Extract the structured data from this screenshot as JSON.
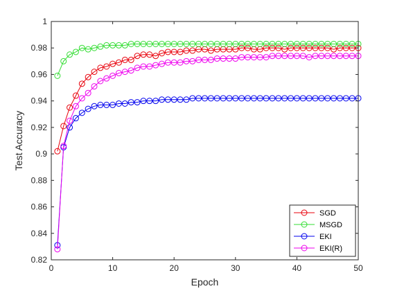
{
  "chart_data": {
    "type": "line",
    "xlabel": "Epoch",
    "ylabel": "Test Accuracy",
    "xlim": [
      0,
      50
    ],
    "ylim": [
      0.82,
      1.0
    ],
    "xticks": [
      0,
      10,
      20,
      30,
      40,
      50
    ],
    "xtick_labels": [
      "0",
      "10",
      "20",
      "30",
      "40",
      "50"
    ],
    "yticks": [
      0.82,
      0.84,
      0.86,
      0.88,
      0.9,
      0.92,
      0.94,
      0.96,
      0.98,
      1.0
    ],
    "ytick_labels": [
      "0.82",
      "0.84",
      "0.86",
      "0.88",
      "0.9",
      "0.92",
      "0.94",
      "0.96",
      "0.98",
      "1"
    ],
    "grid": false,
    "legend_position": "bottom-right",
    "x": [
      1,
      2,
      3,
      4,
      5,
      6,
      7,
      8,
      9,
      10,
      11,
      12,
      13,
      14,
      15,
      16,
      17,
      18,
      19,
      20,
      21,
      22,
      23,
      24,
      25,
      26,
      27,
      28,
      29,
      30,
      31,
      32,
      33,
      34,
      35,
      36,
      37,
      38,
      39,
      40,
      41,
      42,
      43,
      44,
      45,
      46,
      47,
      48,
      49,
      50
    ],
    "series": [
      {
        "name": "SGD",
        "color": "#e8000b",
        "values": [
          0.902,
          0.921,
          0.935,
          0.944,
          0.953,
          0.958,
          0.962,
          0.965,
          0.966,
          0.968,
          0.969,
          0.971,
          0.971,
          0.974,
          0.975,
          0.975,
          0.974,
          0.976,
          0.977,
          0.977,
          0.977,
          0.978,
          0.978,
          0.979,
          0.979,
          0.978,
          0.979,
          0.979,
          0.979,
          0.979,
          0.98,
          0.98,
          0.979,
          0.979,
          0.98,
          0.98,
          0.98,
          0.979,
          0.98,
          0.98,
          0.98,
          0.98,
          0.98,
          0.98,
          0.98,
          0.979,
          0.98,
          0.98,
          0.98,
          0.98
        ]
      },
      {
        "name": "MSGD",
        "color": "#33dd33",
        "values": [
          0.959,
          0.97,
          0.975,
          0.977,
          0.98,
          0.979,
          0.98,
          0.981,
          0.982,
          0.982,
          0.982,
          0.982,
          0.983,
          0.983,
          0.983,
          0.983,
          0.983,
          0.983,
          0.983,
          0.983,
          0.983,
          0.983,
          0.983,
          0.983,
          0.983,
          0.983,
          0.983,
          0.983,
          0.983,
          0.983,
          0.983,
          0.983,
          0.983,
          0.983,
          0.983,
          0.983,
          0.983,
          0.983,
          0.983,
          0.983,
          0.983,
          0.983,
          0.983,
          0.983,
          0.983,
          0.983,
          0.983,
          0.983,
          0.983,
          0.983
        ]
      },
      {
        "name": "EKI",
        "color": "#0000ee",
        "values": [
          0.831,
          0.905,
          0.92,
          0.927,
          0.931,
          0.934,
          0.936,
          0.937,
          0.937,
          0.937,
          0.938,
          0.938,
          0.939,
          0.939,
          0.94,
          0.94,
          0.94,
          0.941,
          0.941,
          0.941,
          0.941,
          0.941,
          0.942,
          0.942,
          0.942,
          0.942,
          0.942,
          0.942,
          0.942,
          0.942,
          0.942,
          0.942,
          0.942,
          0.942,
          0.942,
          0.942,
          0.942,
          0.942,
          0.942,
          0.942,
          0.942,
          0.942,
          0.942,
          0.942,
          0.942,
          0.942,
          0.942,
          0.942,
          0.942,
          0.942
        ]
      },
      {
        "name": "EKI(R)",
        "color": "#ee00ee",
        "values": [
          0.828,
          0.906,
          0.925,
          0.936,
          0.942,
          0.946,
          0.951,
          0.955,
          0.957,
          0.959,
          0.961,
          0.962,
          0.963,
          0.965,
          0.966,
          0.966,
          0.967,
          0.968,
          0.969,
          0.969,
          0.969,
          0.97,
          0.97,
          0.971,
          0.971,
          0.971,
          0.972,
          0.972,
          0.972,
          0.972,
          0.973,
          0.973,
          0.973,
          0.973,
          0.973,
          0.974,
          0.974,
          0.974,
          0.974,
          0.974,
          0.974,
          0.973,
          0.974,
          0.974,
          0.974,
          0.974,
          0.974,
          0.974,
          0.974,
          0.974
        ]
      }
    ]
  }
}
